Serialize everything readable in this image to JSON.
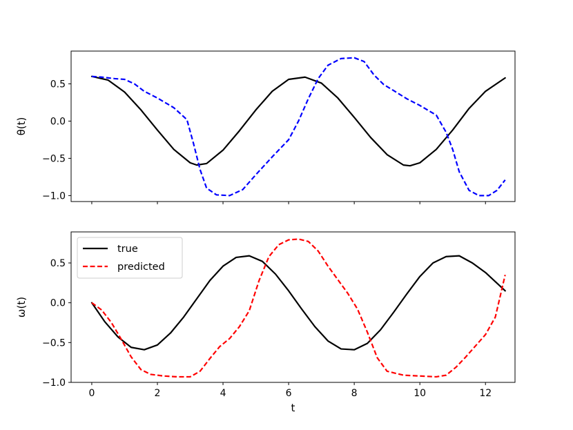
{
  "chart_data": [
    {
      "type": "line",
      "panel": "top",
      "title": "",
      "xlabel": "",
      "ylabel": "θ(t)",
      "xlim": [
        -0.63,
        12.9
      ],
      "ylim": [
        -1.08,
        0.94
      ],
      "xticks": [
        0,
        2,
        4,
        6,
        8,
        10,
        12
      ],
      "yticks": [
        0.5,
        0.0,
        -0.5,
        -1.0
      ],
      "ytick_labels": [
        "0.5",
        "0.0",
        "−0.5",
        "−1.0"
      ],
      "show_xtick_labels": false,
      "grid": false,
      "legend": null,
      "series": [
        {
          "name": "true",
          "color": "#000000",
          "dash": "solid",
          "x": [
            0,
            0.5,
            1.0,
            1.5,
            2.0,
            2.5,
            3.0,
            3.2,
            3.5,
            4.0,
            4.5,
            5.0,
            5.5,
            6.0,
            6.5,
            7.0,
            7.5,
            8.0,
            8.5,
            9.0,
            9.5,
            9.7,
            10.0,
            10.5,
            11.0,
            11.5,
            12.0,
            12.6
          ],
          "y": [
            0.6,
            0.55,
            0.39,
            0.15,
            -0.12,
            -0.38,
            -0.56,
            -0.59,
            -0.57,
            -0.39,
            -0.13,
            0.15,
            0.4,
            0.56,
            0.59,
            0.51,
            0.31,
            0.05,
            -0.22,
            -0.45,
            -0.59,
            -0.6,
            -0.56,
            -0.38,
            -0.12,
            0.17,
            0.4,
            0.58
          ]
        },
        {
          "color": "#0000ff",
          "dash": "dashed",
          "x": [
            0,
            0.3,
            0.7,
            1.0,
            1.3,
            1.6,
            2.0,
            2.5,
            2.9,
            3.1,
            3.3,
            3.5,
            3.8,
            4.2,
            4.6,
            5.0,
            5.5,
            6.0,
            6.3,
            6.6,
            6.9,
            7.2,
            7.6,
            8.0,
            8.3,
            8.6,
            8.9,
            9.2,
            9.6,
            10.0,
            10.5,
            10.8,
            11.0,
            11.2,
            11.5,
            11.8,
            12.1,
            12.35,
            12.6
          ],
          "y": [
            0.6,
            0.59,
            0.57,
            0.56,
            0.5,
            0.4,
            0.31,
            0.18,
            0.02,
            -0.3,
            -0.65,
            -0.9,
            -0.99,
            -1.0,
            -0.92,
            -0.72,
            -0.48,
            -0.25,
            0.0,
            0.3,
            0.57,
            0.75,
            0.84,
            0.85,
            0.8,
            0.62,
            0.49,
            0.41,
            0.3,
            0.21,
            0.08,
            -0.15,
            -0.38,
            -0.68,
            -0.93,
            -1.0,
            -1.0,
            -0.93,
            -0.79
          ]
        }
      ]
    },
    {
      "type": "line",
      "panel": "bottom",
      "title": "",
      "xlabel": "t",
      "ylabel": "ω(t)",
      "xlim": [
        -0.63,
        12.9
      ],
      "ylim": [
        -1.0,
        0.89
      ],
      "xticks": [
        0,
        2,
        4,
        6,
        8,
        10,
        12
      ],
      "xtick_labels": [
        "0",
        "2",
        "4",
        "6",
        "8",
        "10",
        "12"
      ],
      "yticks": [
        0.5,
        0.0,
        -0.5,
        -1.0
      ],
      "ytick_labels": [
        "0.5",
        "0.0",
        "−0.5",
        "−1.0"
      ],
      "show_xtick_labels": true,
      "grid": false,
      "legend": "top-left",
      "series": [
        {
          "name": "true",
          "color": "#000000",
          "dash": "solid",
          "x": [
            0,
            0.4,
            0.8,
            1.2,
            1.6,
            2.0,
            2.4,
            2.8,
            3.2,
            3.6,
            4.0,
            4.4,
            4.8,
            5.2,
            5.6,
            6.0,
            6.4,
            6.8,
            7.2,
            7.6,
            8.0,
            8.4,
            8.8,
            9.2,
            9.6,
            10.0,
            10.4,
            10.8,
            11.2,
            11.6,
            12.0,
            12.6
          ],
          "y": [
            0.0,
            -0.24,
            -0.43,
            -0.56,
            -0.59,
            -0.53,
            -0.38,
            -0.18,
            0.05,
            0.28,
            0.46,
            0.57,
            0.59,
            0.52,
            0.36,
            0.15,
            -0.08,
            -0.3,
            -0.48,
            -0.58,
            -0.59,
            -0.51,
            -0.34,
            -0.12,
            0.11,
            0.33,
            0.5,
            0.58,
            0.59,
            0.5,
            0.38,
            0.15
          ]
        },
        {
          "name": "predicted",
          "color": "#ff0000",
          "dash": "dashed",
          "x": [
            0,
            0.3,
            0.6,
            0.9,
            1.2,
            1.5,
            1.8,
            2.2,
            2.6,
            3.0,
            3.3,
            3.6,
            3.9,
            4.2,
            4.5,
            4.8,
            5.1,
            5.4,
            5.7,
            6.0,
            6.3,
            6.6,
            6.9,
            7.2,
            7.5,
            7.8,
            8.1,
            8.4,
            8.7,
            9.0,
            9.5,
            10.0,
            10.5,
            10.8,
            11.1,
            11.4,
            11.7,
            12.0,
            12.3,
            12.6
          ],
          "y": [
            0.0,
            -0.09,
            -0.25,
            -0.46,
            -0.68,
            -0.84,
            -0.9,
            -0.92,
            -0.93,
            -0.93,
            -0.86,
            -0.7,
            -0.55,
            -0.45,
            -0.3,
            -0.1,
            0.28,
            0.58,
            0.73,
            0.79,
            0.8,
            0.77,
            0.65,
            0.46,
            0.29,
            0.12,
            -0.08,
            -0.37,
            -0.69,
            -0.86,
            -0.91,
            -0.92,
            -0.93,
            -0.91,
            -0.81,
            -0.68,
            -0.54,
            -0.4,
            -0.18,
            0.35
          ]
        }
      ]
    }
  ]
}
